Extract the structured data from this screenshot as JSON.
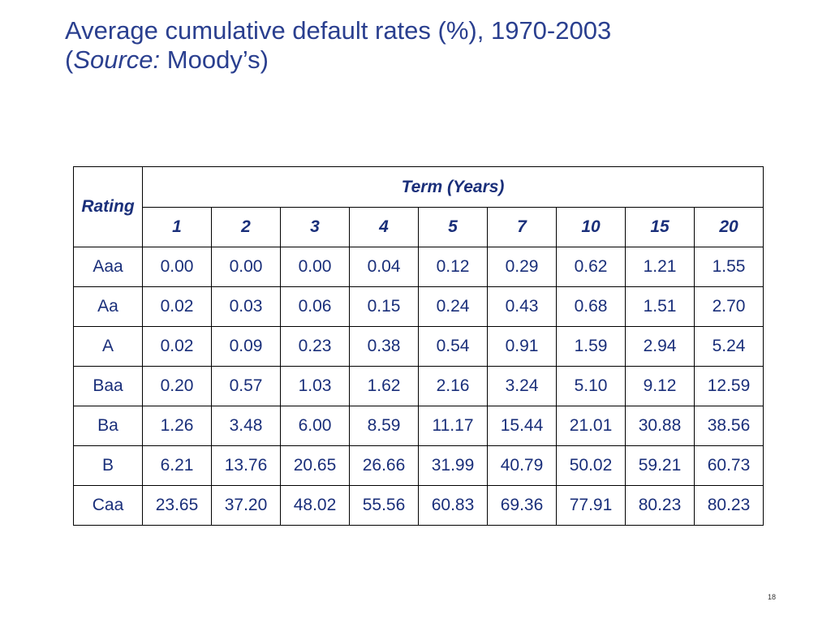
{
  "title": {
    "line1": "Average cumulative default rates (%), 1970-2003",
    "paren_open": "(",
    "source_label": "Source:",
    "source_value": " Moody’s)"
  },
  "table": {
    "rating_header": "Rating",
    "term_header": "Term (Years)",
    "terms": [
      "1",
      "2",
      "3",
      "4",
      "5",
      "7",
      "10",
      "15",
      "20"
    ],
    "rows": [
      {
        "rating": "Aaa",
        "values": [
          "0.00",
          "0.00",
          "0.00",
          "0.04",
          "0.12",
          "0.29",
          "0.62",
          "1.21",
          "1.55"
        ]
      },
      {
        "rating": "Aa",
        "values": [
          "0.02",
          "0.03",
          "0.06",
          "0.15",
          "0.24",
          "0.43",
          "0.68",
          "1.51",
          "2.70"
        ]
      },
      {
        "rating": "A",
        "values": [
          "0.02",
          "0.09",
          "0.23",
          "0.38",
          "0.54",
          "0.91",
          "1.59",
          "2.94",
          "5.24"
        ]
      },
      {
        "rating": "Baa",
        "values": [
          "0.20",
          "0.57",
          "1.03",
          "1.62",
          "2.16",
          "3.24",
          "5.10",
          "9.12",
          "12.59"
        ]
      },
      {
        "rating": "Ba",
        "values": [
          "1.26",
          "3.48",
          "6.00",
          "8.59",
          "11.17",
          "15.44",
          "21.01",
          "30.88",
          "38.56"
        ]
      },
      {
        "rating": "B",
        "values": [
          "6.21",
          "13.76",
          "20.65",
          "26.66",
          "31.99",
          "40.79",
          "50.02",
          "59.21",
          "60.73"
        ]
      },
      {
        "rating": "Caa",
        "values": [
          "23.65",
          "37.20",
          "48.02",
          "55.56",
          "60.83",
          "69.36",
          "77.91",
          "80.23",
          "80.23"
        ]
      }
    ]
  },
  "page_number": "18",
  "colors": {
    "title": "#2a3f8f",
    "table_text": "#1a2f7a"
  }
}
